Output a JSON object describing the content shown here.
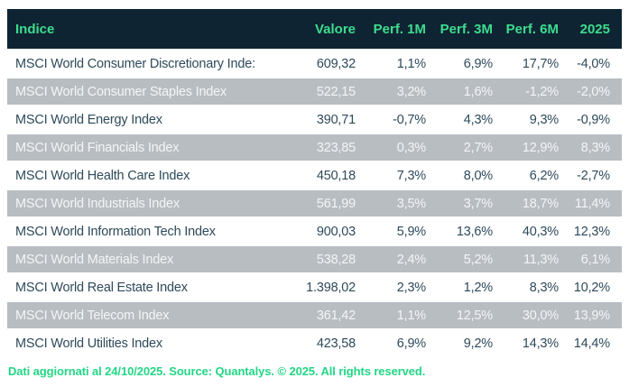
{
  "table": {
    "columns": [
      "Indice",
      "Valore",
      "Perf. 1M",
      "Perf. 3M",
      "Perf. 6M",
      "2025"
    ],
    "rows": [
      {
        "name": "MSCI World Consumer Discretionary Inde:",
        "valore": "609,32",
        "perf_1m": "1,1%",
        "perf_3m": "6,9%",
        "perf_6m": "17,7%",
        "y2025": "-4,0%"
      },
      {
        "name": "MSCI World Consumer Staples Index",
        "valore": "522,15",
        "perf_1m": "3,2%",
        "perf_3m": "1,6%",
        "perf_6m": "-1,2%",
        "y2025": "-2,0%"
      },
      {
        "name": "MSCI World Energy Index",
        "valore": "390,71",
        "perf_1m": "-0,7%",
        "perf_3m": "4,3%",
        "perf_6m": "9,3%",
        "y2025": "-0,9%"
      },
      {
        "name": "MSCI World Financials Index",
        "valore": "323,85",
        "perf_1m": "0,3%",
        "perf_3m": "2,7%",
        "perf_6m": "12,9%",
        "y2025": "8,3%"
      },
      {
        "name": "MSCI World Health Care Index",
        "valore": "450,18",
        "perf_1m": "7,3%",
        "perf_3m": "8,0%",
        "perf_6m": "6,2%",
        "y2025": "-2,7%"
      },
      {
        "name": "MSCI World Industrials Index",
        "valore": "561,99",
        "perf_1m": "3,5%",
        "perf_3m": "3,7%",
        "perf_6m": "18,7%",
        "y2025": "11,4%"
      },
      {
        "name": "MSCI World Information Tech Index",
        "valore": "900,03",
        "perf_1m": "5,9%",
        "perf_3m": "13,6%",
        "perf_6m": "40,3%",
        "y2025": "12,3%"
      },
      {
        "name": "MSCI World Materials Index",
        "valore": "538,28",
        "perf_1m": "2,4%",
        "perf_3m": "5,2%",
        "perf_6m": "11,3%",
        "y2025": "6,1%"
      },
      {
        "name": "MSCI World Real Estate Index",
        "valore": "1.398,02",
        "perf_1m": "2,3%",
        "perf_3m": "1,2%",
        "perf_6m": "8,3%",
        "y2025": "10,2%"
      },
      {
        "name": "MSCI World Telecom Index",
        "valore": "361,42",
        "perf_1m": "1,1%",
        "perf_3m": "12,5%",
        "perf_6m": "30,0%",
        "y2025": "13,9%"
      },
      {
        "name": "MSCI World Utilities Index",
        "valore": "423,58",
        "perf_1m": "6,9%",
        "perf_3m": "9,2%",
        "perf_6m": "14,3%",
        "y2025": "14,4%"
      }
    ]
  },
  "footer": {
    "text": "Dati aggiornati al 24/10/2025. Source: Quantalys. © 2025. All rights reserved."
  },
  "colors": {
    "header_bg": "#0e2433",
    "header_text": "#3edc8e",
    "alt_row_bg": "#b8bdc2",
    "alt_row_text": "#f4f5f6",
    "row_text": "#2e4a5a",
    "footer_text": "#22d685",
    "page_bg": "#ffffff"
  }
}
